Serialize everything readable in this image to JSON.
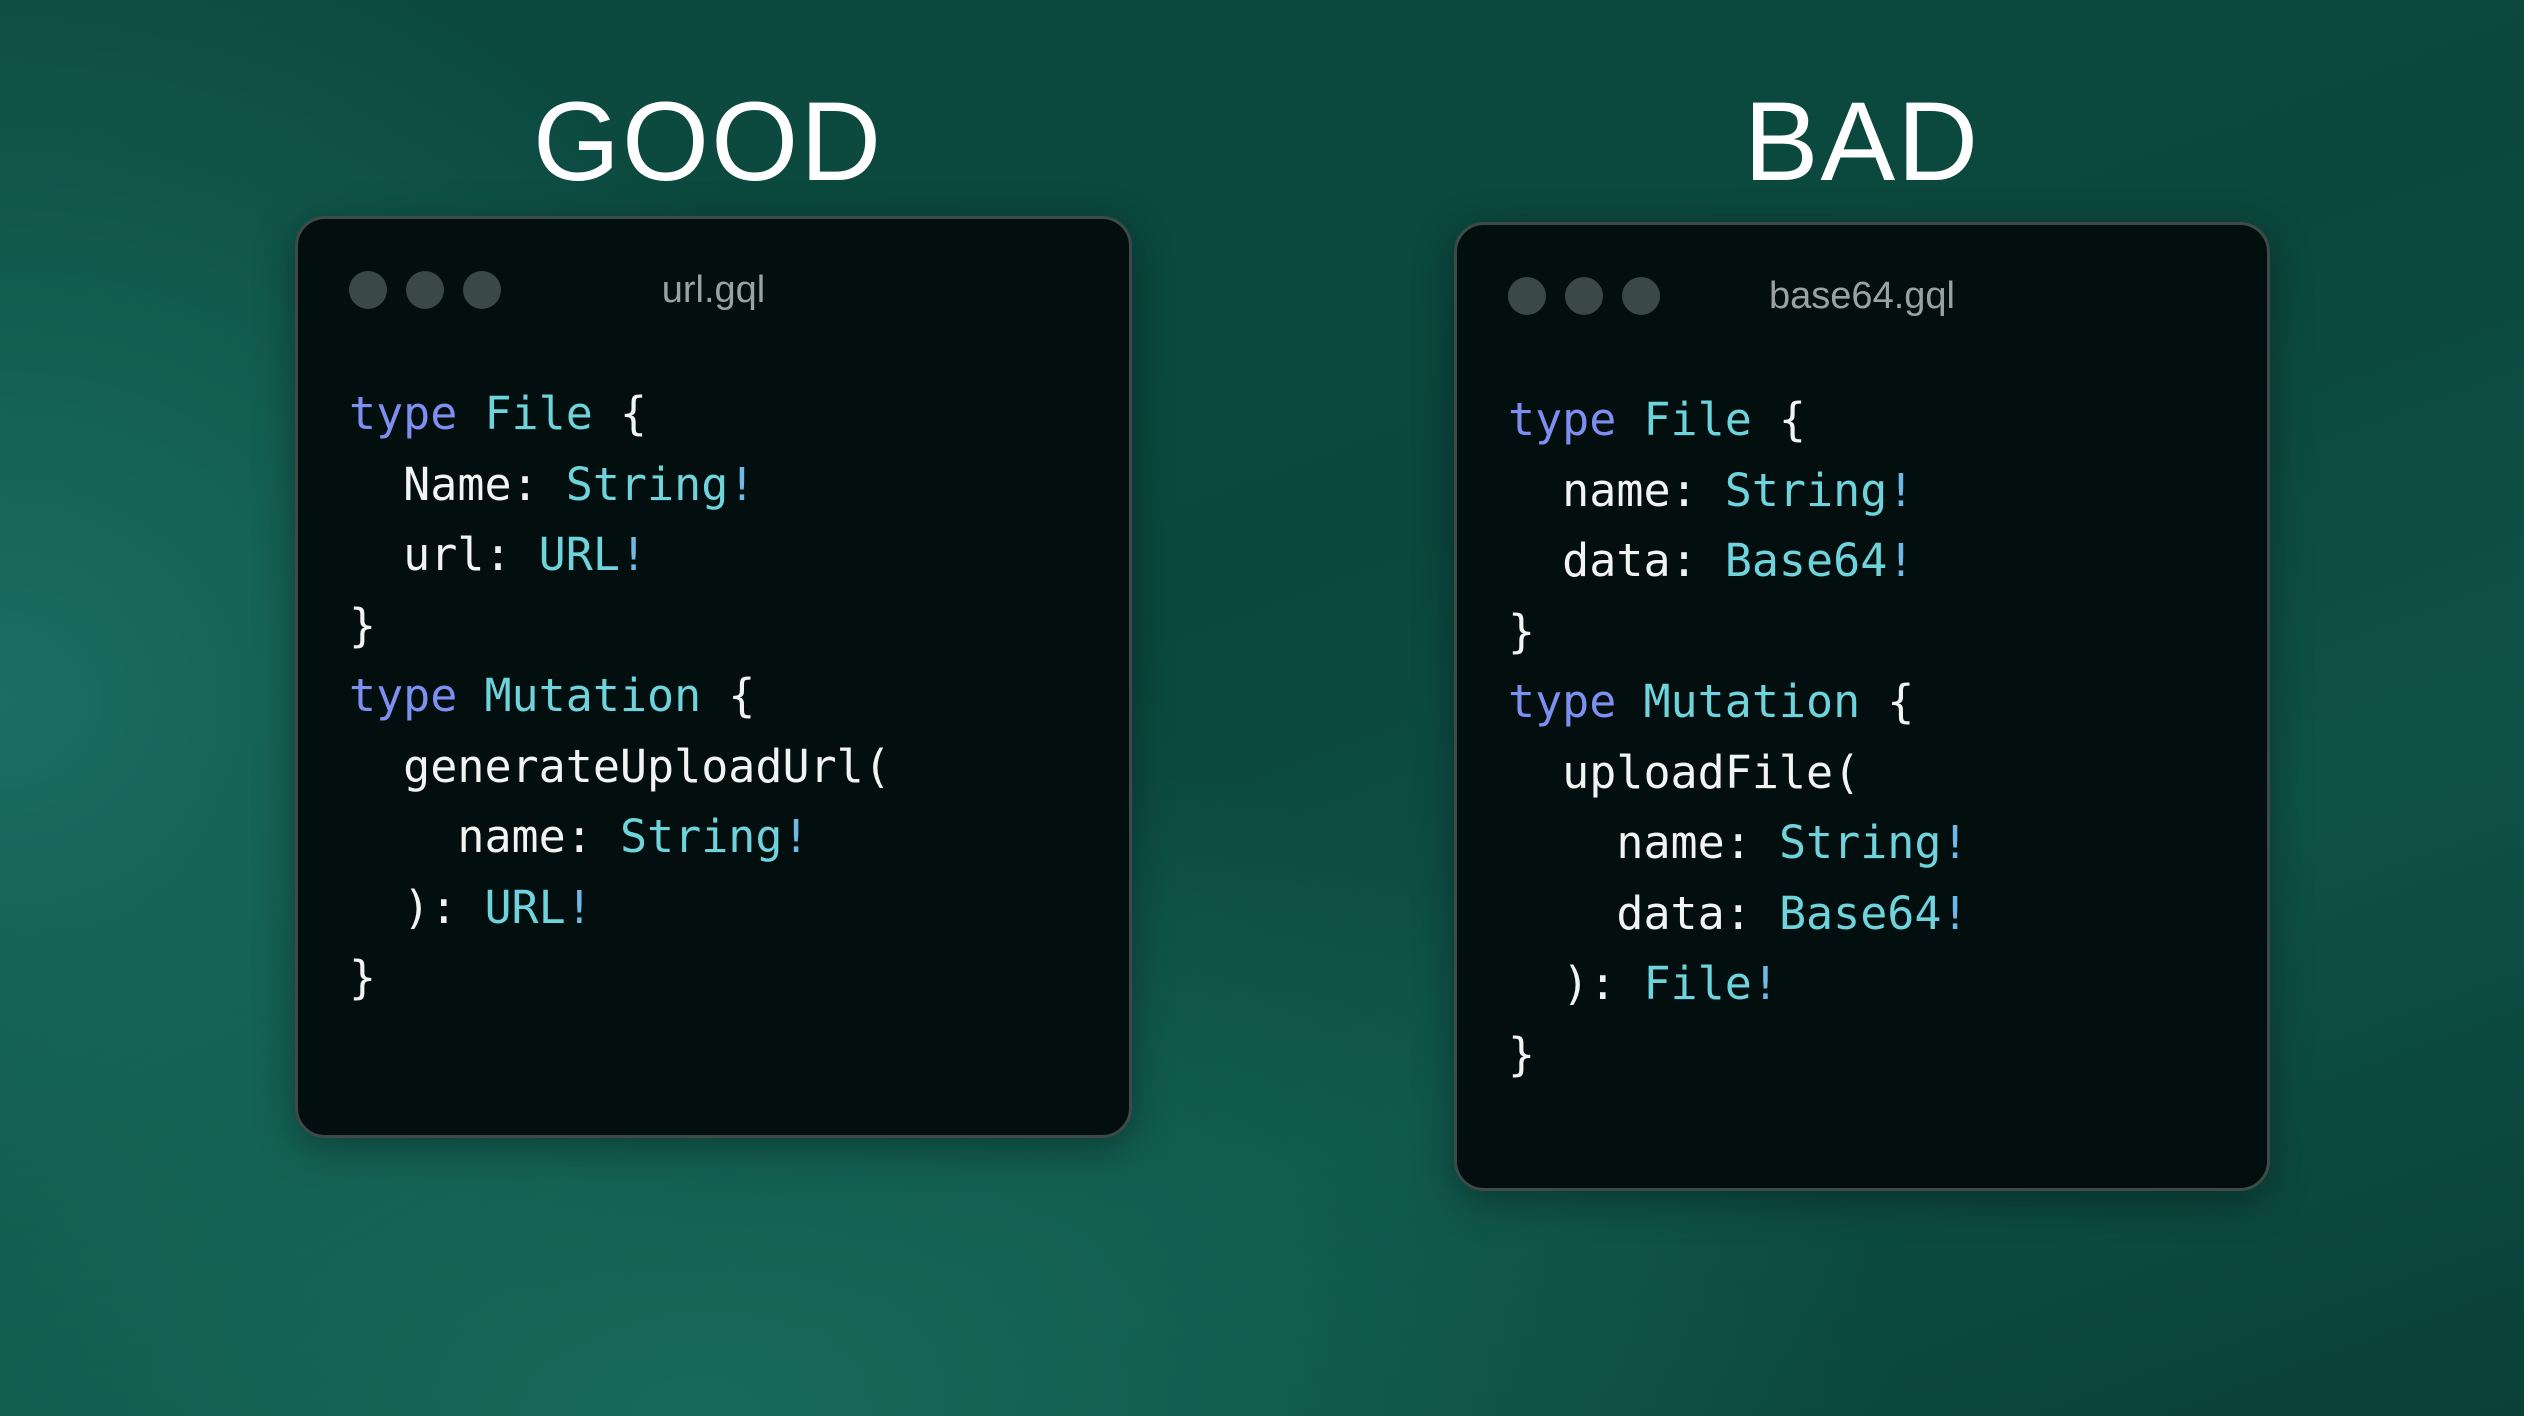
{
  "good": {
    "heading": "GOOD",
    "filename": "url.gql",
    "code": [
      [
        [
          "type",
          "kw"
        ],
        [
          " ",
          "pn"
        ],
        [
          "File",
          "ty"
        ],
        [
          " {",
          "pn"
        ]
      ],
      [
        [
          "  Name: ",
          "pn"
        ],
        [
          "String",
          "ty"
        ],
        [
          "!",
          "bang"
        ]
      ],
      [
        [
          "  url: ",
          "pn"
        ],
        [
          "URL",
          "ty"
        ],
        [
          "!",
          "bang"
        ]
      ],
      [
        [
          "}",
          "pn"
        ]
      ],
      [
        [
          "type",
          "kw"
        ],
        [
          " ",
          "pn"
        ],
        [
          "Mutation",
          "ty"
        ],
        [
          " {",
          "pn"
        ]
      ],
      [
        [
          "  generateUploadUrl(",
          "pn"
        ]
      ],
      [
        [
          "    name: ",
          "pn"
        ],
        [
          "String",
          "ty"
        ],
        [
          "!",
          "bang"
        ]
      ],
      [
        [
          "  ): ",
          "pn"
        ],
        [
          "URL",
          "ty"
        ],
        [
          "!",
          "bang"
        ]
      ],
      [
        [
          "}",
          "pn"
        ]
      ]
    ]
  },
  "bad": {
    "heading": "BAD",
    "filename": "base64.gql",
    "code": [
      [
        [
          "type",
          "kw"
        ],
        [
          " ",
          "pn"
        ],
        [
          "File",
          "ty"
        ],
        [
          " {",
          "pn"
        ]
      ],
      [
        [
          "  name: ",
          "pn"
        ],
        [
          "String",
          "ty"
        ],
        [
          "!",
          "bang"
        ]
      ],
      [
        [
          "  data: ",
          "pn"
        ],
        [
          "Base64",
          "ty"
        ],
        [
          "!",
          "bang"
        ]
      ],
      [
        [
          "}",
          "pn"
        ]
      ],
      [
        [
          "type",
          "kw"
        ],
        [
          " ",
          "pn"
        ],
        [
          "Mutation",
          "ty"
        ],
        [
          " {",
          "pn"
        ]
      ],
      [
        [
          "  uploadFile(",
          "pn"
        ]
      ],
      [
        [
          "    name: ",
          "pn"
        ],
        [
          "String",
          "ty"
        ],
        [
          "!",
          "bang"
        ]
      ],
      [
        [
          "    data: ",
          "pn"
        ],
        [
          "Base64",
          "ty"
        ],
        [
          "!",
          "bang"
        ]
      ],
      [
        [
          "  ): ",
          "pn"
        ],
        [
          "File",
          "ty"
        ],
        [
          "!",
          "bang"
        ]
      ],
      [
        [
          "}",
          "pn"
        ]
      ]
    ]
  },
  "colors": {
    "keyword": "#7d8ff0",
    "type": "#6fd3dc",
    "text": "#f2f4f4",
    "panel": "#020f0e"
  }
}
